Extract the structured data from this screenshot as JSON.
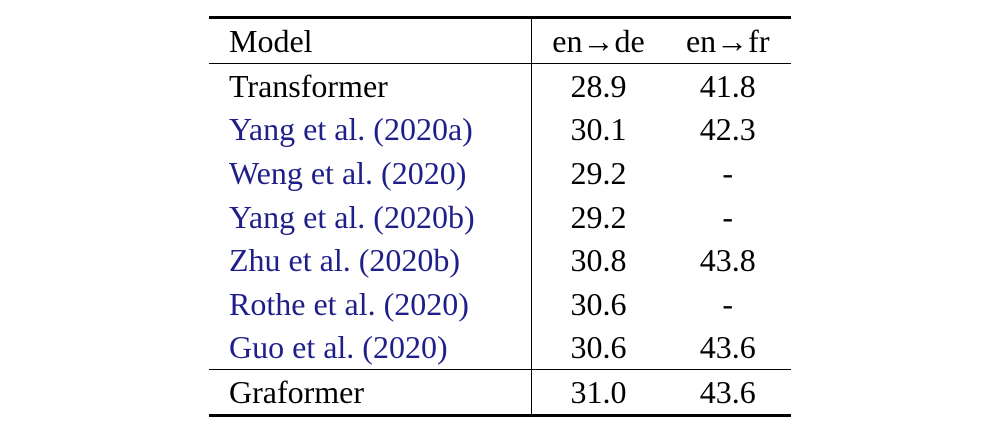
{
  "table": {
    "headers": {
      "model": "Model",
      "en_de": "en→de",
      "en_fr": "en→fr"
    },
    "rows": [
      {
        "model": "Transformer",
        "en_de": "28.9",
        "en_fr": "41.8"
      },
      {
        "model": "Yang et al. (2020a)",
        "en_de": "30.1",
        "en_fr": "42.3"
      },
      {
        "model": "Weng et al. (2020)",
        "en_de": "29.2",
        "en_fr": "-"
      },
      {
        "model": "Yang et al. (2020b)",
        "en_de": "29.2",
        "en_fr": "-"
      },
      {
        "model": "Zhu et al. (2020b)",
        "en_de": "30.8",
        "en_fr": "43.8"
      },
      {
        "model": "Rothe et al. (2020)",
        "en_de": "30.6",
        "en_fr": "-"
      },
      {
        "model": "Guo et al. (2020)",
        "en_de": "30.6",
        "en_fr": "43.6"
      },
      {
        "model": "Graformer",
        "en_de": "31.0",
        "en_fr": "43.6"
      }
    ]
  },
  "colors": {
    "citation_link": "#1f1f8a",
    "text": "#000000",
    "background": "#ffffff"
  }
}
